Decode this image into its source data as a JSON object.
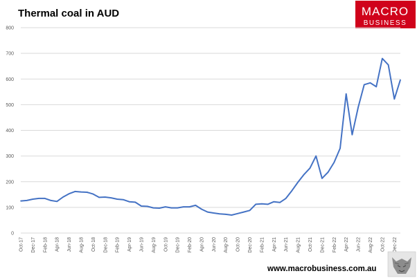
{
  "chart_data": {
    "type": "line",
    "title": "Thermal coal in AUD",
    "xlabel": "",
    "ylabel": "",
    "ylim": [
      0,
      800
    ],
    "yticks": [
      0,
      100,
      200,
      300,
      400,
      500,
      600,
      700,
      800
    ],
    "grid": true,
    "legend": "none",
    "x_tick_labels": [
      "Oct-17",
      "Dec-17",
      "Feb-18",
      "Apr-18",
      "Jun-18",
      "Aug-18",
      "Oct-18",
      "Dec-18",
      "Feb-19",
      "Apr-19",
      "Jun-19",
      "Aug-19",
      "Oct-19",
      "Dec-19",
      "Feb-20",
      "Apr-20",
      "Jun-20",
      "Aug-20",
      "Oct-20",
      "Dec-20",
      "Feb-21",
      "Apr-21",
      "Jun-21",
      "Aug-21",
      "Oct-21",
      "Dec-21",
      "Feb-22",
      "Apr-22",
      "Jun-22",
      "Aug-22",
      "Oct-22",
      "Dec-22"
    ],
    "series": [
      {
        "color": "#4472c4",
        "values": [
          125,
          127,
          132,
          135,
          135,
          127,
          123,
          140,
          153,
          162,
          160,
          159,
          152,
          139,
          140,
          137,
          132,
          130,
          122,
          120,
          105,
          104,
          98,
          97,
          102,
          98,
          98,
          102,
          102,
          108,
          93,
          82,
          78,
          75,
          73,
          70,
          76,
          82,
          88,
          112,
          114,
          112,
          122,
          119,
          135,
          165,
          198,
          228,
          253,
          300,
          213,
          237,
          275,
          330,
          542,
          383,
          490,
          578,
          585,
          570,
          680,
          655,
          522,
          597
        ]
      }
    ]
  },
  "logo": {
    "line1": "MACRO",
    "line2": "BUSINESS"
  },
  "footer": {
    "url": "www.macrobusiness.com.au"
  },
  "colors": {
    "logo_bg": "#d0021b",
    "line": "#4472c4"
  }
}
